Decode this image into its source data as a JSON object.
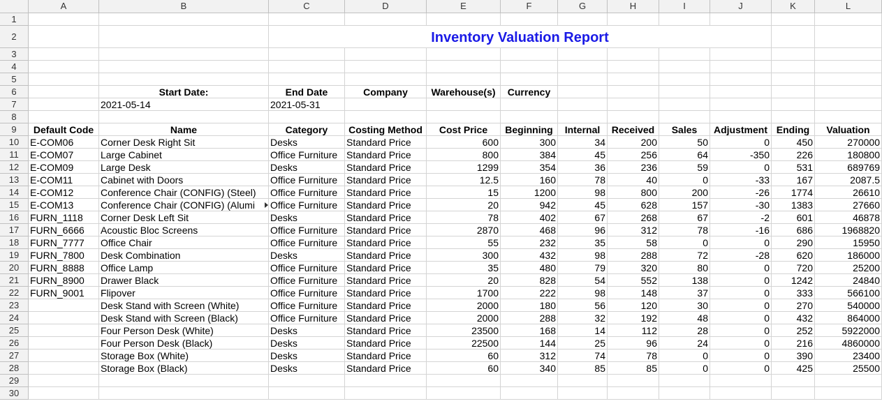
{
  "columns": [
    "A",
    "B",
    "C",
    "D",
    "E",
    "F",
    "G",
    "H",
    "I",
    "J",
    "K",
    "L"
  ],
  "report_title": "Inventory Valuation Report",
  "params": {
    "start_label": "Start Date:",
    "end_label": "End Date",
    "company_label": "Company",
    "warehouse_label": "Warehouse(s)",
    "currency_label": "Currency",
    "start_value": "2021-05-14",
    "end_value": "2021-05-31"
  },
  "table_headers": [
    "Default Code",
    "Name",
    "Category",
    "Costing Method",
    "Cost Price",
    "Beginning",
    "Internal",
    "Received",
    "Sales",
    "Adjustment",
    "Ending",
    "Valuation"
  ],
  "rows": [
    [
      "E-COM06",
      "Corner Desk Right Sit",
      "Desks",
      "Standard Price",
      "600",
      "300",
      "34",
      "200",
      "50",
      "0",
      "450",
      "270000"
    ],
    [
      "E-COM07",
      "Large Cabinet",
      "Office Furniture",
      "Standard Price",
      "800",
      "384",
      "45",
      "256",
      "64",
      "-350",
      "226",
      "180800"
    ],
    [
      "E-COM09",
      "Large Desk",
      "Desks",
      "Standard Price",
      "1299",
      "354",
      "36",
      "236",
      "59",
      "0",
      "531",
      "689769"
    ],
    [
      "E-COM11",
      "Cabinet with Doors",
      "Office Furniture",
      "Standard Price",
      "12.5",
      "160",
      "78",
      "40",
      "0",
      "-33",
      "167",
      "2087.5"
    ],
    [
      "E-COM12",
      "Conference Chair (CONFIG) (Steel)",
      "Office Furniture",
      "Standard Price",
      "15",
      "1200",
      "98",
      "800",
      "200",
      "-26",
      "1774",
      "26610"
    ],
    [
      "E-COM13",
      "Conference Chair (CONFIG) (Alumi",
      "Office Furniture",
      "Standard Price",
      "20",
      "942",
      "45",
      "628",
      "157",
      "-30",
      "1383",
      "27660"
    ],
    [
      "FURN_1118",
      "Corner Desk Left Sit",
      "Desks",
      "Standard Price",
      "78",
      "402",
      "67",
      "268",
      "67",
      "-2",
      "601",
      "46878"
    ],
    [
      "FURN_6666",
      "Acoustic Bloc Screens",
      "Office Furniture",
      "Standard Price",
      "2870",
      "468",
      "96",
      "312",
      "78",
      "-16",
      "686",
      "1968820"
    ],
    [
      "FURN_7777",
      "Office Chair",
      "Office Furniture",
      "Standard Price",
      "55",
      "232",
      "35",
      "58",
      "0",
      "0",
      "290",
      "15950"
    ],
    [
      "FURN_7800",
      "Desk Combination",
      "Desks",
      "Standard Price",
      "300",
      "432",
      "98",
      "288",
      "72",
      "-28",
      "620",
      "186000"
    ],
    [
      "FURN_8888",
      "Office Lamp",
      "Office Furniture",
      "Standard Price",
      "35",
      "480",
      "79",
      "320",
      "80",
      "0",
      "720",
      "25200"
    ],
    [
      "FURN_8900",
      "Drawer Black",
      "Office Furniture",
      "Standard Price",
      "20",
      "828",
      "54",
      "552",
      "138",
      "0",
      "1242",
      "24840"
    ],
    [
      "FURN_9001",
      "Flipover",
      "Office Furniture",
      "Standard Price",
      "1700",
      "222",
      "98",
      "148",
      "37",
      "0",
      "333",
      "566100"
    ],
    [
      "",
      "Desk Stand with Screen (White)",
      "Office Furniture",
      "Standard Price",
      "2000",
      "180",
      "56",
      "120",
      "30",
      "0",
      "270",
      "540000"
    ],
    [
      "",
      "Desk Stand with Screen (Black)",
      "Office Furniture",
      "Standard Price",
      "2000",
      "288",
      "32",
      "192",
      "48",
      "0",
      "432",
      "864000"
    ],
    [
      "",
      "Four Person Desk (White)",
      "Desks",
      "Standard Price",
      "23500",
      "168",
      "14",
      "112",
      "28",
      "0",
      "252",
      "5922000"
    ],
    [
      "",
      "Four Person Desk (Black)",
      "Desks",
      "Standard Price",
      "22500",
      "144",
      "25",
      "96",
      "24",
      "0",
      "216",
      "4860000"
    ],
    [
      "",
      "Storage Box (White)",
      "Desks",
      "Standard Price",
      "60",
      "312",
      "74",
      "78",
      "0",
      "0",
      "390",
      "23400"
    ],
    [
      "",
      "Storage Box (Black)",
      "Desks",
      "Standard Price",
      "60",
      "340",
      "85",
      "85",
      "0",
      "0",
      "425",
      "25500"
    ]
  ],
  "row_numbers": [
    "1",
    "2",
    "3",
    "4",
    "5",
    "6",
    "7",
    "8",
    "9",
    "10",
    "11",
    "12",
    "13",
    "14",
    "15",
    "16",
    "17",
    "18",
    "19",
    "20",
    "21",
    "22",
    "23",
    "24",
    "25",
    "26",
    "27",
    "28",
    "29",
    "30"
  ]
}
